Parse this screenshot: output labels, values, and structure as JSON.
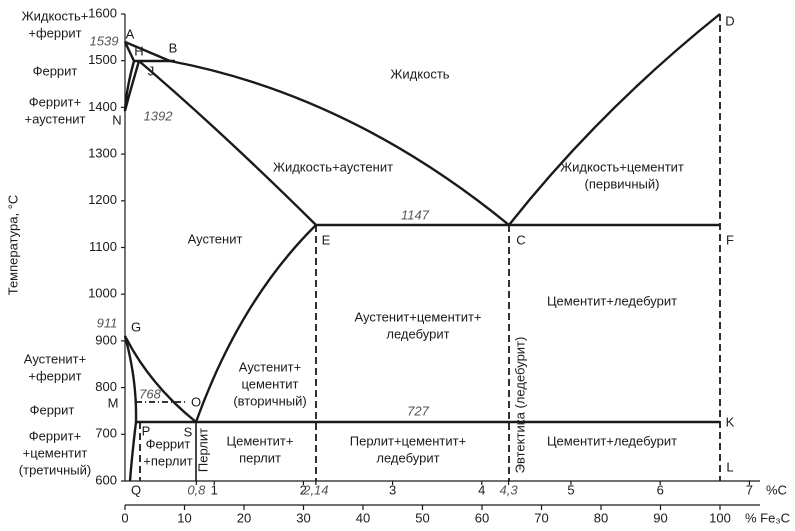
{
  "y_axis": {
    "title": "Температура, °C",
    "ticks": [
      600,
      700,
      800,
      900,
      1000,
      1100,
      1200,
      1300,
      1400,
      1500,
      1600
    ]
  },
  "x_axis_carbon": {
    "unit": "%C",
    "ticks": [
      {
        "value": 0.8,
        "label": "0,8"
      },
      1,
      2,
      {
        "value": 2.14,
        "label": "2,14"
      },
      3,
      4,
      {
        "value": 4.3,
        "label": "4,3"
      },
      5,
      6,
      7
    ]
  },
  "x_axis_cementite": {
    "unit": "% Fe₃C",
    "ticks": [
      0,
      10,
      20,
      30,
      40,
      50,
      60,
      70,
      80,
      90,
      100
    ]
  },
  "points": [
    "A",
    "B",
    "H",
    "J",
    "N",
    "E",
    "C",
    "D",
    "F",
    "G",
    "M",
    "O",
    "K",
    "P",
    "S",
    "Q",
    "L"
  ],
  "temperatures": [
    1539,
    1392,
    911,
    768,
    1147,
    727
  ],
  "regions": [
    [
      "Жидкость+",
      "+феррит"
    ],
    [
      "Феррит"
    ],
    [
      "Феррит+",
      "+аустенит"
    ],
    [
      "Жидкость"
    ],
    [
      "Жидкость+аустенит"
    ],
    [
      "Жидкость+цементит",
      "(первичный)"
    ],
    [
      "Аустенит"
    ],
    [
      "Аустенит+цементит+",
      "ледебурит"
    ],
    [
      "Цементит+ледебурит"
    ],
    [
      "Аустенит+",
      "+феррит"
    ],
    [
      "Аустенит+",
      "цементит",
      "(вторичный)"
    ],
    [
      "Феррит"
    ],
    [
      "Феррит+",
      "+цементит",
      "(третичный)"
    ],
    [
      "Феррит",
      "+перлит"
    ],
    [
      "Перлит"
    ],
    [
      "Цементит+",
      "перлит"
    ],
    [
      "Перлит+цементит+",
      "ледебурит"
    ],
    [
      "Эвтектика (ледебурит)"
    ],
    [
      "Цементит+ледебурит"
    ]
  ]
}
